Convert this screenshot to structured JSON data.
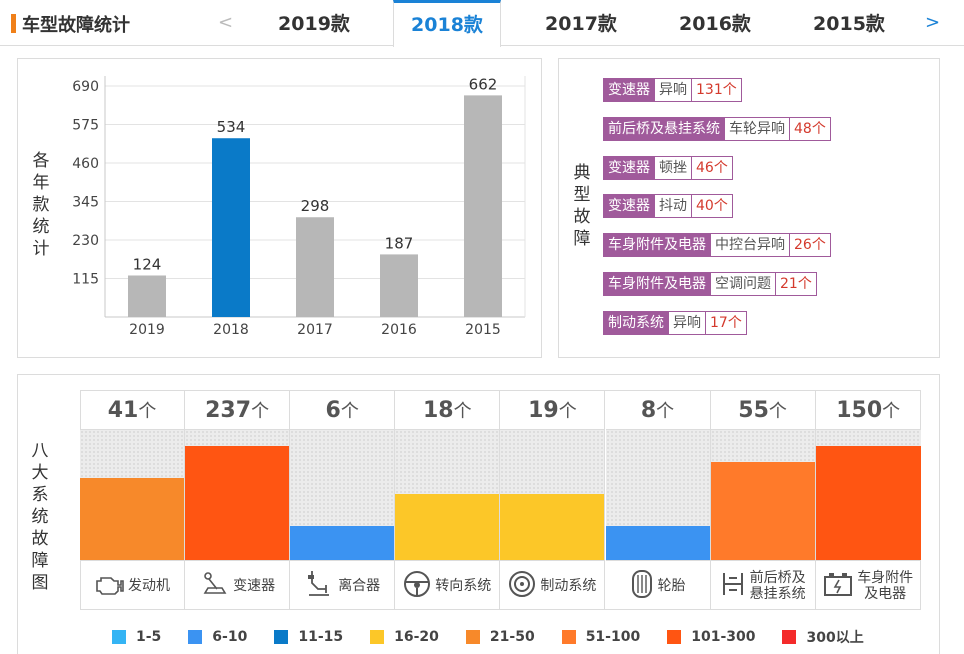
{
  "header": {
    "title": "车型故障统计",
    "prev_arrow": "<",
    "next_arrow": ">",
    "tabs": [
      {
        "label": "2019款",
        "active": false
      },
      {
        "label": "2018款",
        "active": true
      },
      {
        "label": "2017款",
        "active": false
      },
      {
        "label": "2016款",
        "active": false
      },
      {
        "label": "2015款",
        "active": false
      }
    ]
  },
  "year_chart": {
    "ylabel": "各年款统计",
    "chart_data": {
      "type": "bar",
      "categories": [
        "2019",
        "2018",
        "2017",
        "2016",
        "2015"
      ],
      "values": [
        124,
        534,
        298,
        187,
        662
      ],
      "highlight": "2018",
      "yticks": [
        115,
        230,
        345,
        460,
        575,
        690
      ],
      "ylim": [
        0,
        690
      ],
      "colors": {
        "default": "#b7b7b7",
        "highlight": "#0a7ac8"
      }
    }
  },
  "typical_faults": {
    "label": "典型故障",
    "items": [
      {
        "system": "变速器",
        "symptom": "异响",
        "count": "131个"
      },
      {
        "system": "前后桥及悬挂系统",
        "symptom": "车轮异响",
        "count": "48个"
      },
      {
        "system": "变速器",
        "symptom": "顿挫",
        "count": "46个"
      },
      {
        "system": "变速器",
        "symptom": "抖动",
        "count": "40个"
      },
      {
        "system": "车身附件及电器",
        "symptom": "中控台异响",
        "count": "26个"
      },
      {
        "system": "车身附件及电器",
        "symptom": "空调问题",
        "count": "21个"
      },
      {
        "system": "制动系统",
        "symptom": "异响",
        "count": "17个"
      }
    ]
  },
  "systems": {
    "label": "八大系统故障图",
    "unit": "个",
    "items": [
      {
        "name": "发动机",
        "count": "41",
        "value": 41,
        "color": "#f7892a",
        "icon": "engine-icon"
      },
      {
        "name": "变速器",
        "count": "237",
        "value": 237,
        "color": "#ff5512",
        "icon": "gear-shift-icon"
      },
      {
        "name": "离合器",
        "count": "6",
        "value": 6,
        "color": "#3b93f2",
        "icon": "clutch-pedal-icon"
      },
      {
        "name": "转向系统",
        "count": "18",
        "value": 18,
        "color": "#fcc728",
        "icon": "steering-wheel-icon"
      },
      {
        "name": "制动系统",
        "count": "19",
        "value": 19,
        "color": "#fcc728",
        "icon": "brake-disc-icon"
      },
      {
        "name": "轮胎",
        "count": "8",
        "value": 8,
        "color": "#3b93f2",
        "icon": "tire-icon"
      },
      {
        "name": "前后桥及悬挂系统",
        "name_lines": [
          "前后桥及",
          "悬挂系统"
        ],
        "count": "55",
        "value": 55,
        "color": "#ff7a2a",
        "icon": "suspension-icon"
      },
      {
        "name": "车身附件及电器",
        "name_lines": [
          "车身附件",
          "及电器"
        ],
        "count": "150",
        "value": 150,
        "color": "#ff5512",
        "icon": "battery-icon"
      }
    ]
  },
  "legend": [
    {
      "label": "1-5",
      "color": "#34b4f4"
    },
    {
      "label": "6-10",
      "color": "#3b93f2"
    },
    {
      "label": "11-15",
      "color": "#0a7ac8"
    },
    {
      "label": "16-20",
      "color": "#fcc728"
    },
    {
      "label": "21-50",
      "color": "#f7892a"
    },
    {
      "label": "51-100",
      "color": "#ff7a2a"
    },
    {
      "label": "101-300",
      "color": "#ff5512"
    },
    {
      "label": "300以上",
      "color": "#f42a2a"
    }
  ]
}
